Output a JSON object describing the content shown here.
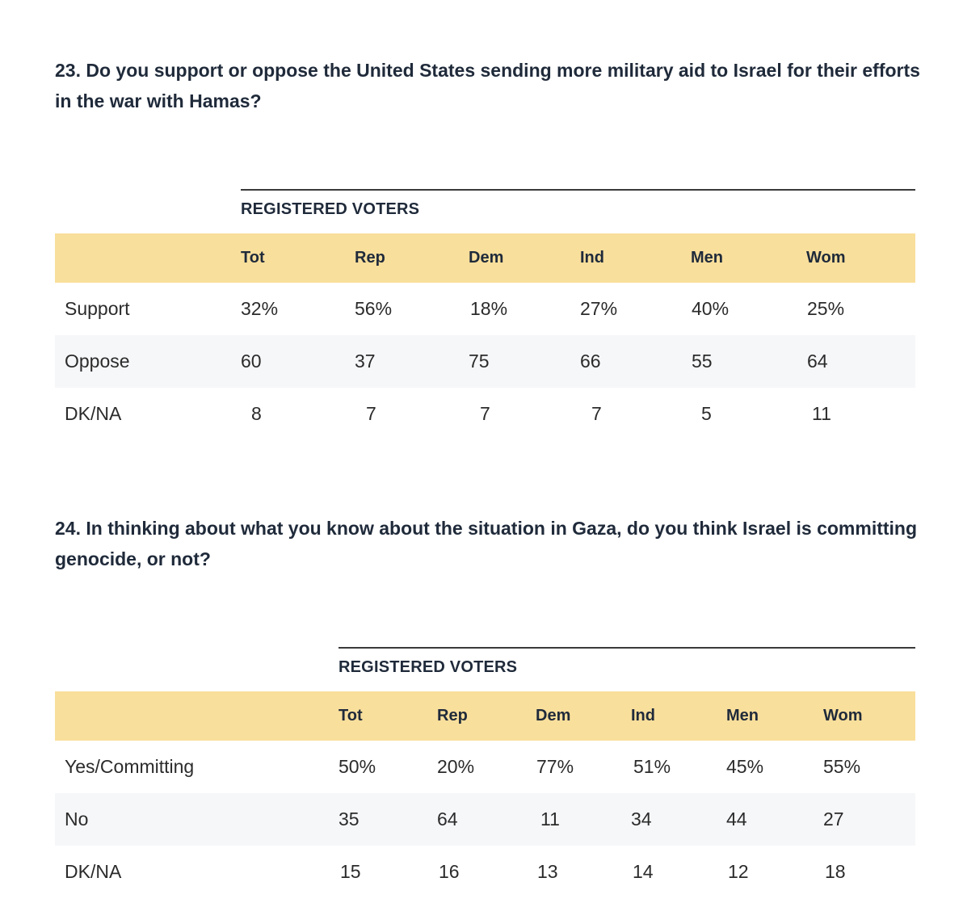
{
  "questions": [
    {
      "text": "23. Do you support or oppose the United States sending more military aid to Israel for their efforts in the war with Hamas?",
      "group_label": "REGISTERED VOTERS",
      "columns": [
        "Tot",
        "Rep",
        "Dem",
        "Ind",
        "Men",
        "Wom"
      ],
      "rows": [
        {
          "label": "Support",
          "values": [
            "32%",
            "56%",
            "18%",
            "27%",
            "40%",
            "25%"
          ]
        },
        {
          "label": "Oppose",
          "values": [
            "60",
            "37",
            "75",
            "66",
            "55",
            "64"
          ]
        },
        {
          "label": "DK/NA",
          "values": [
            "8",
            "7",
            "7",
            "7",
            "5",
            "11"
          ]
        }
      ]
    },
    {
      "text": "24. In thinking about what you know about the situation in Gaza, do you think Israel is committing genocide, or not?",
      "group_label": "REGISTERED VOTERS",
      "columns": [
        "Tot",
        "Rep",
        "Dem",
        "Ind",
        "Men",
        "Wom"
      ],
      "rows": [
        {
          "label": "Yes/Committing",
          "values": [
            "50%",
            "20%",
            "77%",
            "51%",
            "45%",
            "55%"
          ]
        },
        {
          "label": "No",
          "values": [
            "35",
            "64",
            "11",
            "34",
            "44",
            "27"
          ]
        },
        {
          "label": "DK/NA",
          "values": [
            "15",
            "16",
            "13",
            "14",
            "12",
            "18"
          ]
        }
      ]
    }
  ],
  "colors": {
    "header_band": "#f9df9c",
    "row_shade": "#f6f7f9",
    "text_dark": "#1f2a3a"
  }
}
